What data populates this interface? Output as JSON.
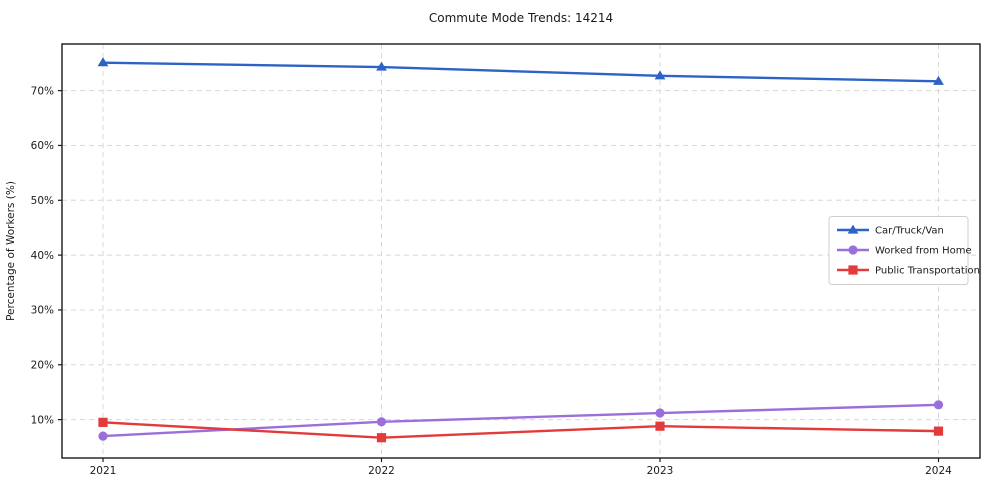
{
  "chart_data": {
    "type": "line",
    "title": "Commute Mode Trends: 14214",
    "ylabel": "Percentage of Workers (%)",
    "xlabel": "",
    "categories": [
      "2021",
      "2022",
      "2023",
      "2024"
    ],
    "series": [
      {
        "name": "Car/Truck/Van",
        "color": "#2e63c6",
        "marker": "triangle",
        "values": [
          75.1,
          74.3,
          72.7,
          71.7
        ]
      },
      {
        "name": "Worked from Home",
        "color": "#9a6fd9",
        "marker": "circle",
        "values": [
          7.0,
          9.6,
          11.2,
          12.7
        ]
      },
      {
        "name": "Public Transportation",
        "color": "#e23b3b",
        "marker": "square",
        "values": [
          9.5,
          6.7,
          8.8,
          7.9
        ]
      }
    ],
    "yticks": [
      10,
      20,
      30,
      40,
      50,
      60,
      70
    ],
    "ytick_suffix": "%",
    "ylim": [
      3,
      78.5
    ],
    "grid": true,
    "grid_style": "dashed",
    "grid_color": "#d8d8d8",
    "spine_color": "#1a1a1a",
    "background_color": "#ffffff",
    "legend_position": "center-right"
  }
}
